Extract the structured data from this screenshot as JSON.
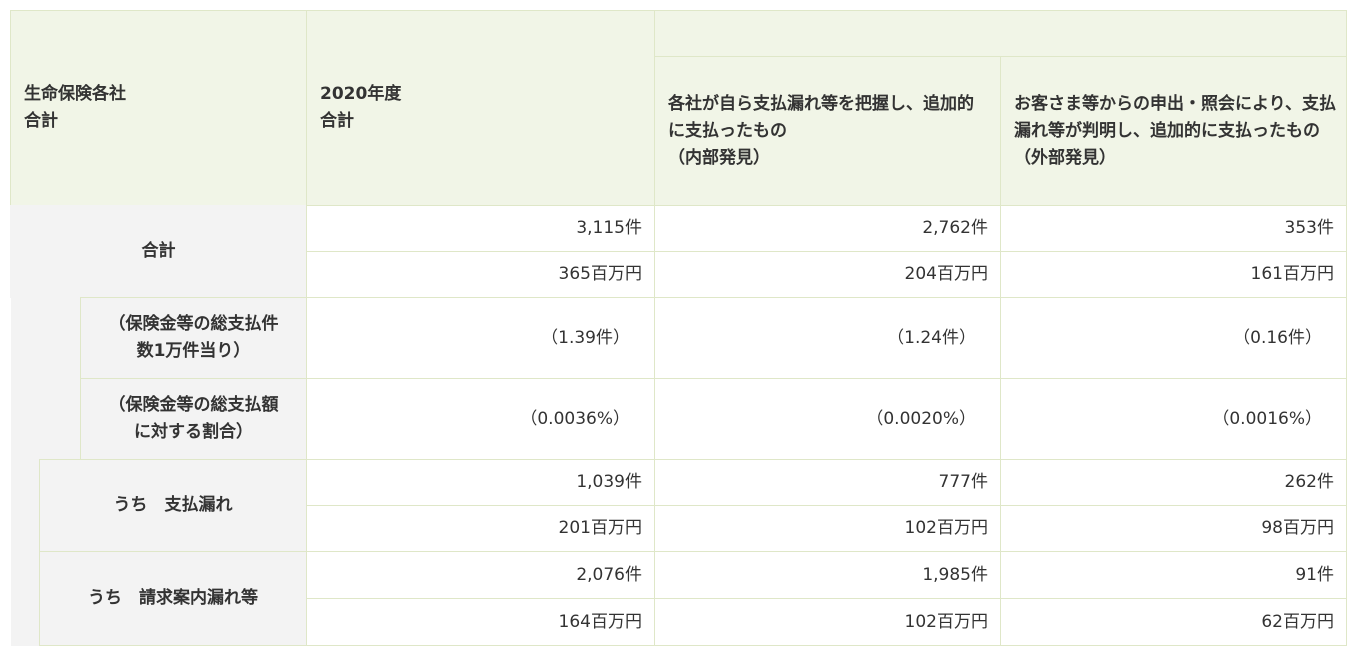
{
  "header": {
    "company": "生命保険各社\n合計",
    "year_total": "2020年度\n合計",
    "internal": "各社が自ら支払漏れ等を把握し、追加的に支払ったもの\n（内部発見）",
    "external": "お客さま等からの申出・照会により、支払漏れ等が判明し、追加的に支払ったもの\n（外部発見）"
  },
  "rows": {
    "total": {
      "label": "合計",
      "count": {
        "year": "3,115件",
        "internal": "2,762件",
        "external": "353件"
      },
      "amount": {
        "year": "365百万円",
        "internal": "204百万円",
        "external": "161百万円"
      }
    },
    "per10k": {
      "label": "（保険金等の総支払件\n数1万件当り）",
      "year": "（1.39件）",
      "internal": "（1.24件）",
      "external": "（0.16件）"
    },
    "ratio": {
      "label": "（保険金等の総支払額\nに対する割合）",
      "year": "（0.0036%）",
      "internal": "（0.0020%）",
      "external": "（0.0016%）"
    },
    "omission": {
      "label": "うち　支払漏れ",
      "count": {
        "year": "1,039件",
        "internal": "777件",
        "external": "262件"
      },
      "amount": {
        "year": "201百万円",
        "internal": "102百万円",
        "external": "98百万円"
      }
    },
    "claim_guidance": {
      "label": "うち　請求案内漏れ等",
      "count": {
        "year": "2,076件",
        "internal": "1,985件",
        "external": "91件"
      },
      "amount": {
        "year": "164百万円",
        "internal": "102百万円",
        "external": "62百万円"
      }
    }
  }
}
